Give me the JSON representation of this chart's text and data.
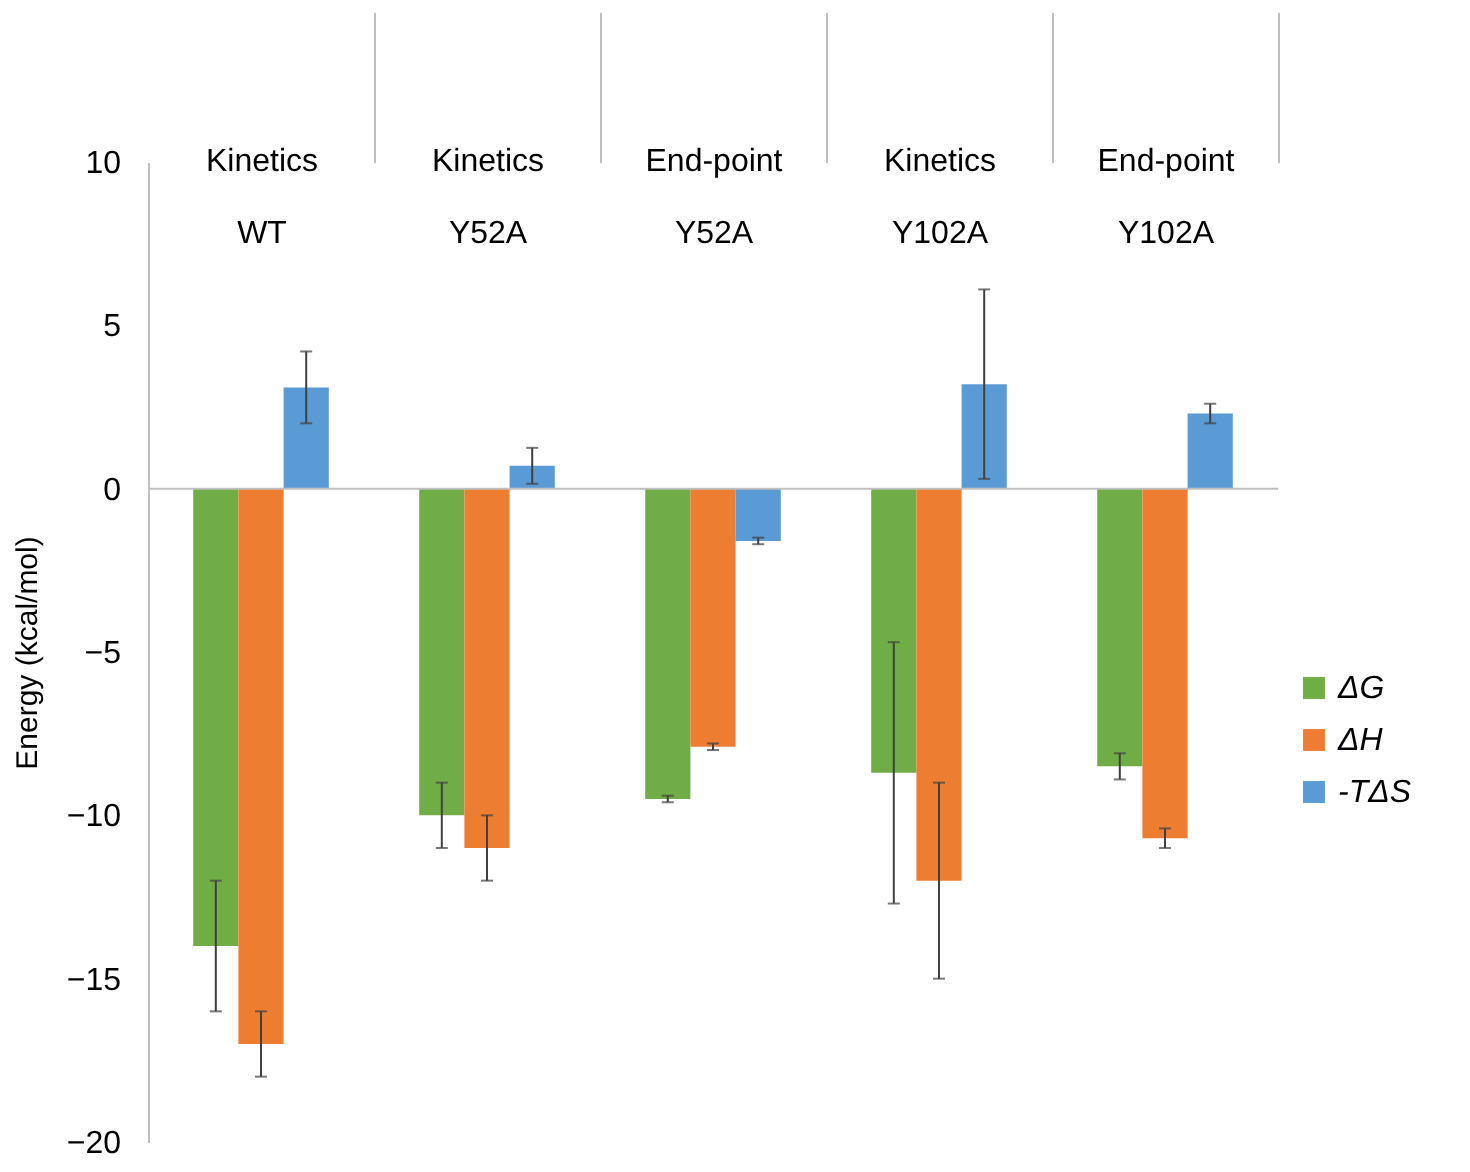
{
  "chart_data": {
    "type": "bar",
    "ylabel": "Energy (kcal/mol)",
    "categories": [
      "Kinetics\nWT",
      "Kinetics\nY52A",
      "End-point\nY52A",
      "Kinetics\nY102A",
      "End-point\nY102A"
    ],
    "series": [
      {
        "name": "ΔG",
        "color": "#70ad47",
        "values": [
          -14,
          -10,
          -9.5,
          -8.7,
          -8.5
        ],
        "errors": [
          2,
          1,
          0.1,
          4,
          0.4
        ]
      },
      {
        "name": "ΔH",
        "color": "#ed7d31",
        "values": [
          -17,
          -11,
          -7.9,
          -12,
          -10.7
        ],
        "errors": [
          1,
          1,
          0.1,
          3,
          0.3
        ]
      },
      {
        "name": "-TΔS",
        "color": "#5b9bd5",
        "values": [
          3.1,
          0.7,
          -1.6,
          3.2,
          2.3
        ],
        "errors": [
          1.1,
          0.55,
          0.1,
          2.9,
          0.3
        ]
      }
    ],
    "ref_lines": [
      {
        "axis": "y",
        "value": 0,
        "color": "#bfbfbf"
      }
    ],
    "ylim": [
      -20,
      10
    ],
    "yticks": [
      -20,
      -15,
      -10,
      -5,
      0,
      5,
      10
    ],
    "grid": false,
    "legend": "right"
  }
}
